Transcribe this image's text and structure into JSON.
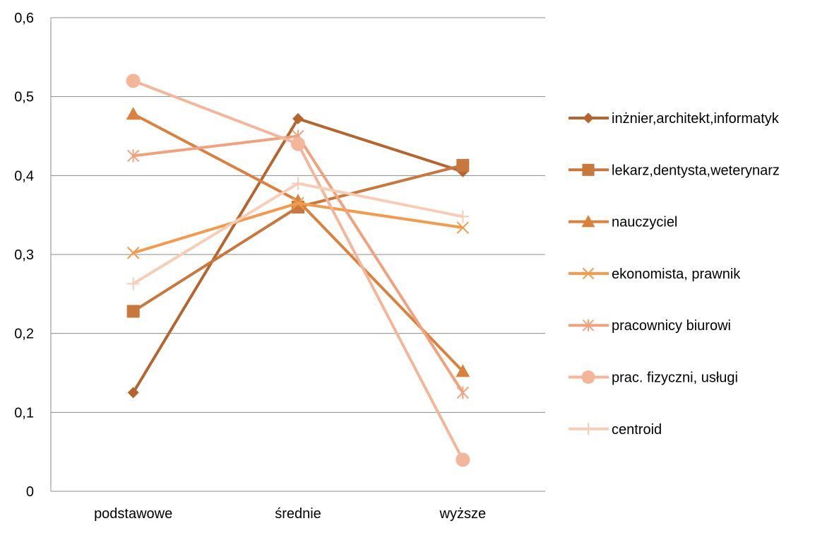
{
  "chart_data": {
    "type": "line",
    "title": "",
    "xlabel": "",
    "ylabel": "",
    "categories": [
      "podstawowe",
      "średnie",
      "wyższe"
    ],
    "ylim": [
      0,
      0.6
    ],
    "yticks": [
      "0",
      "0,1",
      "0,2",
      "0,3",
      "0,4",
      "0,5",
      "0,6"
    ],
    "grid": true,
    "legend_position": "right",
    "series": [
      {
        "name": "inżnier,architekt,informatyk",
        "values": [
          0.125,
          0.472,
          0.405
        ],
        "color": "#B5652F",
        "marker": "diamond"
      },
      {
        "name": "lekarz,dentysta,weterynarz",
        "values": [
          0.228,
          0.36,
          0.413
        ],
        "color": "#C8773D",
        "marker": "square"
      },
      {
        "name": "nauczyciel",
        "values": [
          0.478,
          0.368,
          0.152
        ],
        "color": "#D9823F",
        "marker": "triangle"
      },
      {
        "name": "ekonomista, prawnik",
        "values": [
          0.302,
          0.365,
          0.334
        ],
        "color": "#F29A4E",
        "marker": "x"
      },
      {
        "name": "pracownicy biurowi",
        "values": [
          0.425,
          0.45,
          0.125
        ],
        "color": "#EFA27E",
        "marker": "star"
      },
      {
        "name": "prac. fizyczni, usługi",
        "values": [
          0.52,
          0.44,
          0.04
        ],
        "color": "#F4B69A",
        "marker": "circle"
      },
      {
        "name": "centroid",
        "values": [
          0.263,
          0.39,
          0.348
        ],
        "color": "#F7CDB8",
        "marker": "plus"
      }
    ]
  }
}
